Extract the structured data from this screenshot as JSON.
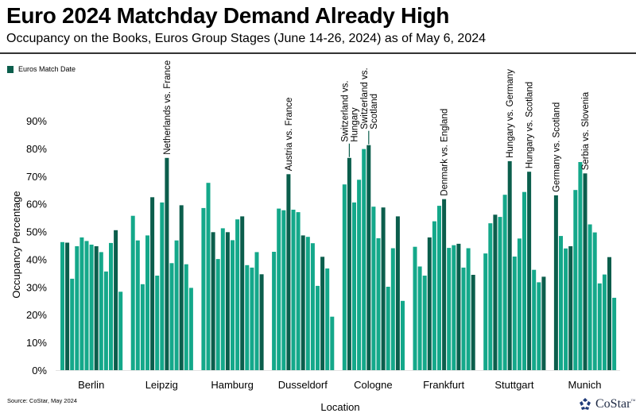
{
  "header": {
    "title": "Euro 2024 Matchday Demand Already High",
    "subtitle": "Occupancy on the Books, Euros Group Stages (June 14-26, 2024) as of May 6, 2024"
  },
  "footer": {
    "source": "Source: CoStar, May 2024",
    "logo_text": "CoStar",
    "logo_mark": "™"
  },
  "colors": {
    "regular": "#14a88a",
    "match_date": "#0b5e4c"
  },
  "chart_data": {
    "type": "bar",
    "title": "Euro 2024 Matchday Demand Already High",
    "subtitle": "Occupancy on the Books, Euros Group Stages (June 14-26, 2024) as of May 6, 2024",
    "xlabel": "Location",
    "ylabel": "Occupancy Percentage",
    "ylim": [
      0,
      90
    ],
    "yticks": [
      "0%",
      "10%",
      "20%",
      "30%",
      "40%",
      "50%",
      "60%",
      "70%",
      "80%",
      "90%"
    ],
    "grid": false,
    "legend": {
      "position": "top-left",
      "entries": [
        {
          "label": "Euros Match Date",
          "color": "#0b5e4c"
        }
      ]
    },
    "days_per_group": 13,
    "groups": [
      {
        "name": "Berlin",
        "values": [
          46.2,
          46.0,
          33.0,
          44.7,
          47.9,
          46.6,
          45.3,
          44.7,
          42.6,
          35.6,
          45.9,
          50.5,
          28.3
        ],
        "match": [
          false,
          true,
          false,
          false,
          false,
          false,
          false,
          true,
          false,
          false,
          false,
          true,
          false
        ],
        "annotations": []
      },
      {
        "name": "Leipzig",
        "values": [
          55.7,
          46.8,
          31.0,
          48.6,
          62.4,
          34.1,
          60.5,
          76.6,
          38.6,
          46.8,
          59.5,
          38.2,
          29.7
        ],
        "match": [
          false,
          false,
          false,
          false,
          true,
          false,
          false,
          true,
          false,
          false,
          true,
          false,
          false
        ],
        "annotations": [
          {
            "index": 7,
            "lines": [
              "Netherlands vs. France"
            ]
          }
        ]
      },
      {
        "name": "Hamburg",
        "values": [
          58.5,
          67.6,
          49.8,
          40.1,
          51.2,
          49.8,
          46.9,
          54.4,
          55.5,
          37.9,
          37.0,
          42.6,
          34.6
        ],
        "match": [
          false,
          false,
          true,
          false,
          false,
          true,
          false,
          false,
          true,
          false,
          false,
          false,
          true
        ],
        "annotations": []
      },
      {
        "name": "Dusseldorf",
        "values": [
          42.7,
          58.3,
          57.7,
          70.7,
          57.9,
          57.0,
          48.6,
          48.1,
          45.8,
          30.4,
          40.9,
          36.7,
          19.3
        ],
        "match": [
          false,
          false,
          false,
          true,
          false,
          false,
          true,
          false,
          false,
          false,
          true,
          false,
          false
        ],
        "annotations": [
          {
            "index": 3,
            "lines": [
              "Austria vs. France"
            ]
          }
        ]
      },
      {
        "name": "Cologne",
        "values": [
          67.0,
          76.6,
          60.5,
          68.7,
          79.8,
          81.2,
          59.0,
          47.6,
          58.7,
          30.1,
          44.0,
          55.5,
          25.0
        ],
        "match": [
          false,
          true,
          false,
          false,
          false,
          true,
          false,
          false,
          true,
          false,
          false,
          true,
          false
        ],
        "annotations": [
          {
            "index": 1,
            "lines": [
              "Switzerland vs.",
              "Hungary"
            ],
            "leader": true
          },
          {
            "index": 5,
            "lines": [
              "Switzerland vs.",
              "Scotland"
            ],
            "leader": true
          }
        ]
      },
      {
        "name": "Frankfurt",
        "values": [
          44.5,
          37.4,
          34.1,
          47.9,
          53.7,
          59.3,
          61.7,
          44.1,
          45.1,
          45.6,
          37.0,
          44.0,
          34.4
        ],
        "match": [
          false,
          false,
          false,
          true,
          false,
          false,
          true,
          false,
          false,
          true,
          false,
          false,
          true
        ],
        "annotations": [
          {
            "index": 6,
            "lines": [
              "Denmark vs. England"
            ]
          }
        ]
      },
      {
        "name": "Stuttgart",
        "values": [
          42.1,
          53.0,
          56.1,
          55.3,
          63.3,
          75.4,
          41.0,
          47.5,
          64.3,
          71.6,
          36.2,
          31.7,
          33.7
        ],
        "match": [
          false,
          false,
          true,
          false,
          false,
          true,
          false,
          false,
          false,
          true,
          false,
          false,
          true
        ],
        "annotations": [
          {
            "index": 5,
            "lines": [
              "Hungary vs. Germany"
            ]
          },
          {
            "index": 9,
            "lines": [
              "Hungary vs. Scotland"
            ]
          }
        ]
      },
      {
        "name": "Munich",
        "values": [
          63.1,
          48.4,
          43.9,
          44.7,
          65.0,
          75.1,
          71.0,
          52.6,
          49.7,
          31.3,
          34.5,
          40.8,
          26.1
        ],
        "match": [
          true,
          false,
          false,
          true,
          false,
          false,
          true,
          false,
          false,
          false,
          false,
          true,
          false
        ],
        "annotations": [
          {
            "index": 0,
            "lines": [
              "Germany vs. Scotland"
            ]
          },
          {
            "index": 6,
            "lines": [
              "Serbia vs. Slovenia"
            ]
          }
        ]
      }
    ]
  }
}
